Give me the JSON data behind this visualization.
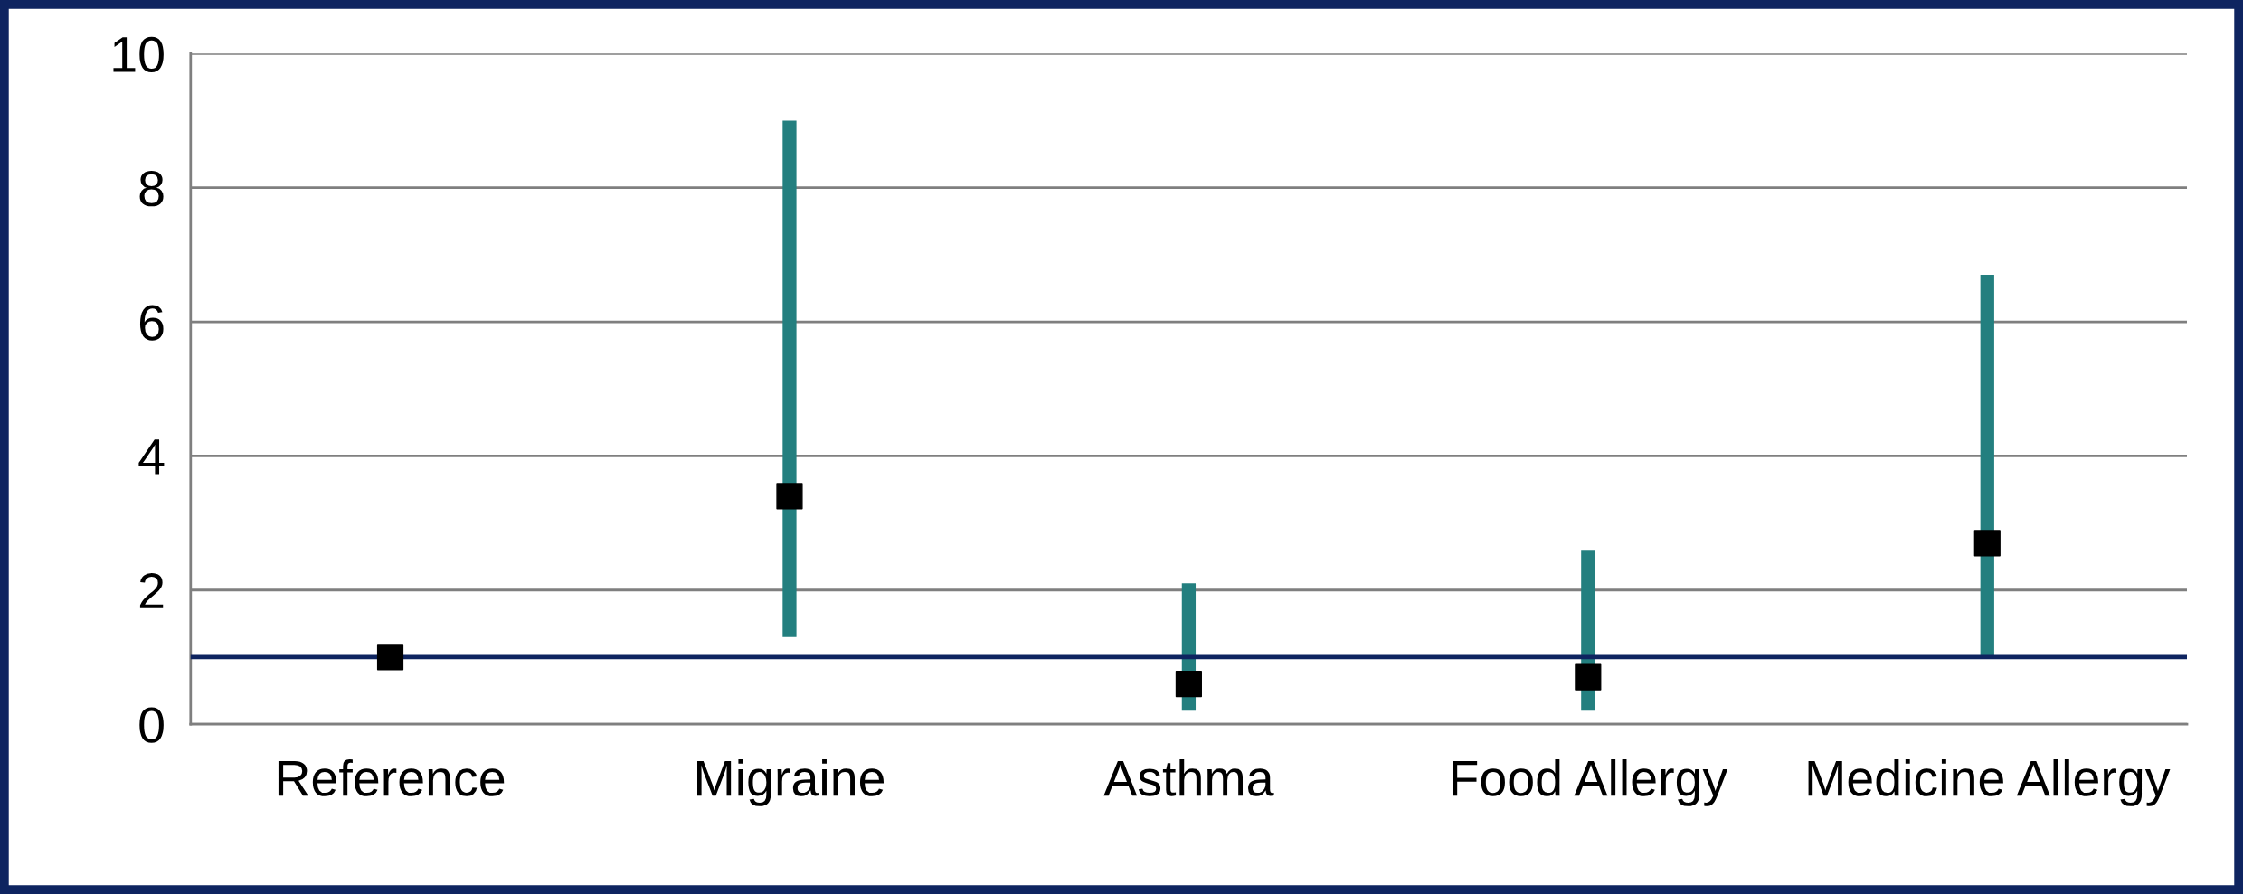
{
  "chart_data": {
    "type": "scatter",
    "categories": [
      "Reference",
      "Migraine",
      "Asthma",
      "Food Allergy",
      "Medicine Allergy"
    ],
    "series": [
      {
        "color": "#237f7f",
        "colors": [
          "#000000",
          "#000000",
          "#000000",
          "#000000",
          "#000000"
        ],
        "values": [
          1.0,
          3.4,
          0.6,
          0.7,
          2.7
        ],
        "errors": [
          null,
          [
            1.3,
            9.0
          ],
          [
            0.2,
            2.1
          ],
          [
            0.2,
            2.6
          ],
          [
            1.0,
            6.7
          ]
        ]
      }
    ],
    "marker": "square",
    "ylim": [
      0,
      10
    ],
    "yticks": [
      0,
      2,
      4,
      6,
      8,
      10
    ],
    "grid": "y",
    "legend": false,
    "ref_lines": [
      {
        "axis": "y",
        "value": 1,
        "color": "#0e2460",
        "line_style": "solid"
      }
    ]
  }
}
